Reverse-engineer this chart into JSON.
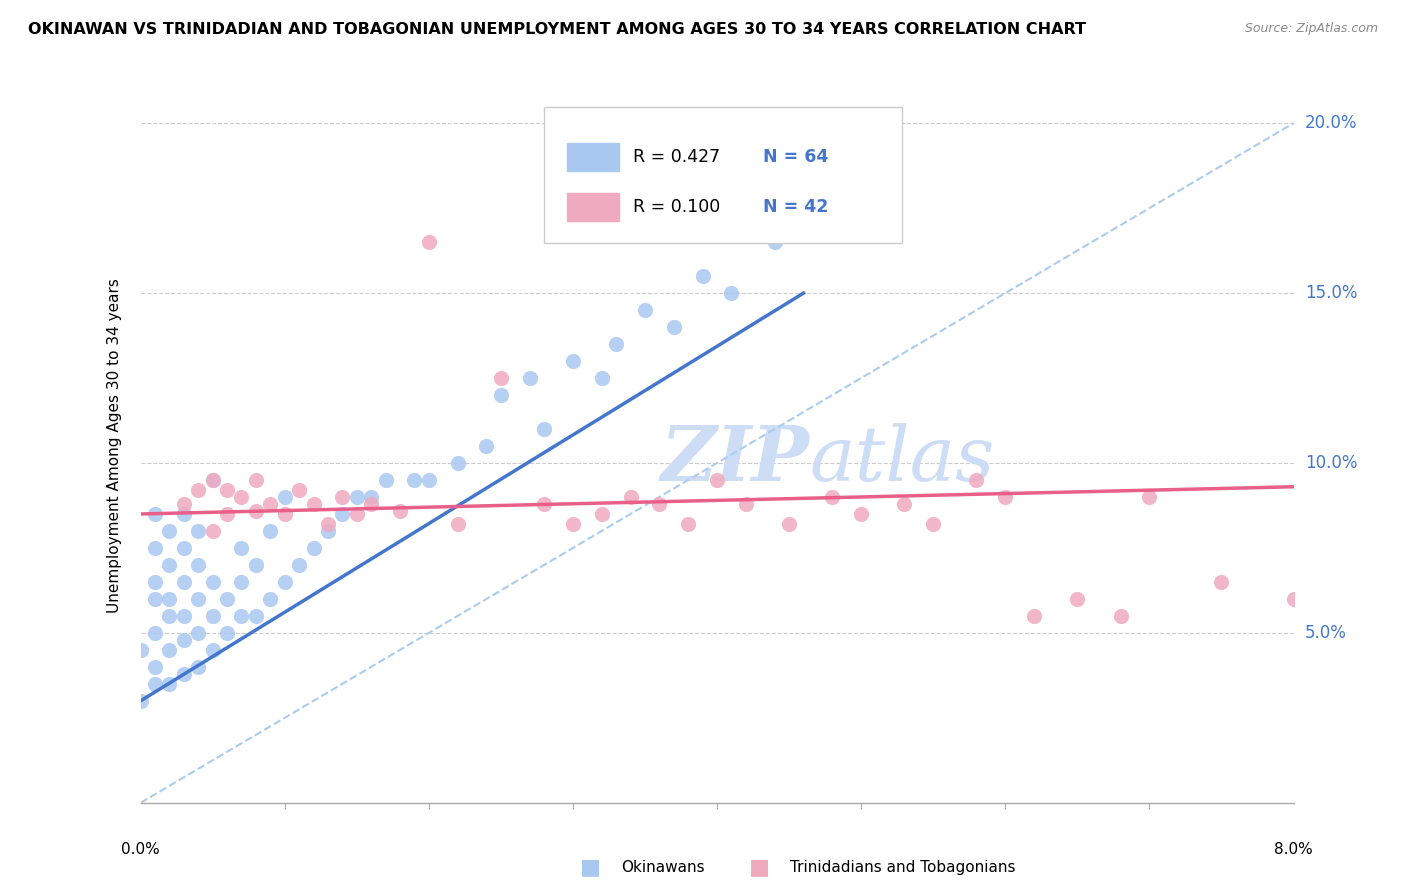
{
  "title": "OKINAWAN VS TRINIDADIAN AND TOBAGONIAN UNEMPLOYMENT AMONG AGES 30 TO 34 YEARS CORRELATION CHART",
  "source": "Source: ZipAtlas.com",
  "ylabel": "Unemployment Among Ages 30 to 34 years",
  "xlim": [
    0.0,
    0.08
  ],
  "ylim": [
    0.0,
    0.21
  ],
  "yticks": [
    0.05,
    0.1,
    0.15,
    0.2
  ],
  "ytick_labels": [
    "5.0%",
    "10.0%",
    "15.0%",
    "20.0%"
  ],
  "blue_R": 0.427,
  "blue_N": 64,
  "pink_R": 0.1,
  "pink_N": 42,
  "blue_color": "#a8c8f0",
  "pink_color": "#f0aac0",
  "blue_line_color": "#4477cc",
  "pink_line_color": "#e8608a",
  "diag_color": "#aaccee",
  "ytick_color": "#4477cc",
  "watermark_color": "#ccddf5",
  "legend_label_blue": "Okinawans",
  "legend_label_pink": "Trinidadians and Tobagonians",
  "blue_trend_x0": 0.0,
  "blue_trend_y0": 0.03,
  "blue_trend_x1": 0.046,
  "blue_trend_y1": 0.15,
  "pink_trend_x0": 0.0,
  "pink_trend_y0": 0.085,
  "pink_trend_x1": 0.08,
  "pink_trend_y1": 0.093,
  "blue_x": [
    0.0,
    0.0,
    0.001,
    0.001,
    0.001,
    0.001,
    0.001,
    0.001,
    0.001,
    0.002,
    0.002,
    0.002,
    0.002,
    0.002,
    0.002,
    0.003,
    0.003,
    0.003,
    0.003,
    0.003,
    0.003,
    0.004,
    0.004,
    0.004,
    0.004,
    0.004,
    0.005,
    0.005,
    0.005,
    0.005,
    0.006,
    0.006,
    0.007,
    0.007,
    0.007,
    0.008,
    0.008,
    0.009,
    0.009,
    0.01,
    0.01,
    0.011,
    0.012,
    0.013,
    0.014,
    0.015,
    0.016,
    0.017,
    0.019,
    0.02,
    0.022,
    0.024,
    0.025,
    0.027,
    0.028,
    0.03,
    0.032,
    0.033,
    0.035,
    0.037,
    0.039,
    0.041,
    0.044,
    0.047
  ],
  "blue_y": [
    0.045,
    0.03,
    0.035,
    0.04,
    0.05,
    0.06,
    0.065,
    0.075,
    0.085,
    0.035,
    0.045,
    0.055,
    0.06,
    0.07,
    0.08,
    0.038,
    0.048,
    0.055,
    0.065,
    0.075,
    0.085,
    0.04,
    0.05,
    0.06,
    0.07,
    0.08,
    0.045,
    0.055,
    0.065,
    0.095,
    0.05,
    0.06,
    0.055,
    0.065,
    0.075,
    0.055,
    0.07,
    0.06,
    0.08,
    0.065,
    0.09,
    0.07,
    0.075,
    0.08,
    0.085,
    0.09,
    0.09,
    0.095,
    0.095,
    0.095,
    0.1,
    0.105,
    0.12,
    0.125,
    0.11,
    0.13,
    0.125,
    0.135,
    0.145,
    0.14,
    0.155,
    0.15,
    0.165,
    0.17
  ],
  "pink_x": [
    0.003,
    0.004,
    0.005,
    0.005,
    0.006,
    0.006,
    0.007,
    0.008,
    0.008,
    0.009,
    0.01,
    0.011,
    0.012,
    0.013,
    0.014,
    0.015,
    0.016,
    0.018,
    0.02,
    0.022,
    0.025,
    0.028,
    0.03,
    0.032,
    0.034,
    0.036,
    0.038,
    0.04,
    0.042,
    0.045,
    0.048,
    0.05,
    0.053,
    0.055,
    0.058,
    0.06,
    0.062,
    0.065,
    0.068,
    0.07,
    0.075,
    0.08
  ],
  "pink_y": [
    0.088,
    0.092,
    0.08,
    0.095,
    0.085,
    0.092,
    0.09,
    0.086,
    0.095,
    0.088,
    0.085,
    0.092,
    0.088,
    0.082,
    0.09,
    0.085,
    0.088,
    0.086,
    0.165,
    0.082,
    0.125,
    0.088,
    0.082,
    0.085,
    0.09,
    0.088,
    0.082,
    0.095,
    0.088,
    0.082,
    0.09,
    0.085,
    0.088,
    0.082,
    0.095,
    0.09,
    0.055,
    0.06,
    0.055,
    0.09,
    0.065,
    0.06
  ]
}
